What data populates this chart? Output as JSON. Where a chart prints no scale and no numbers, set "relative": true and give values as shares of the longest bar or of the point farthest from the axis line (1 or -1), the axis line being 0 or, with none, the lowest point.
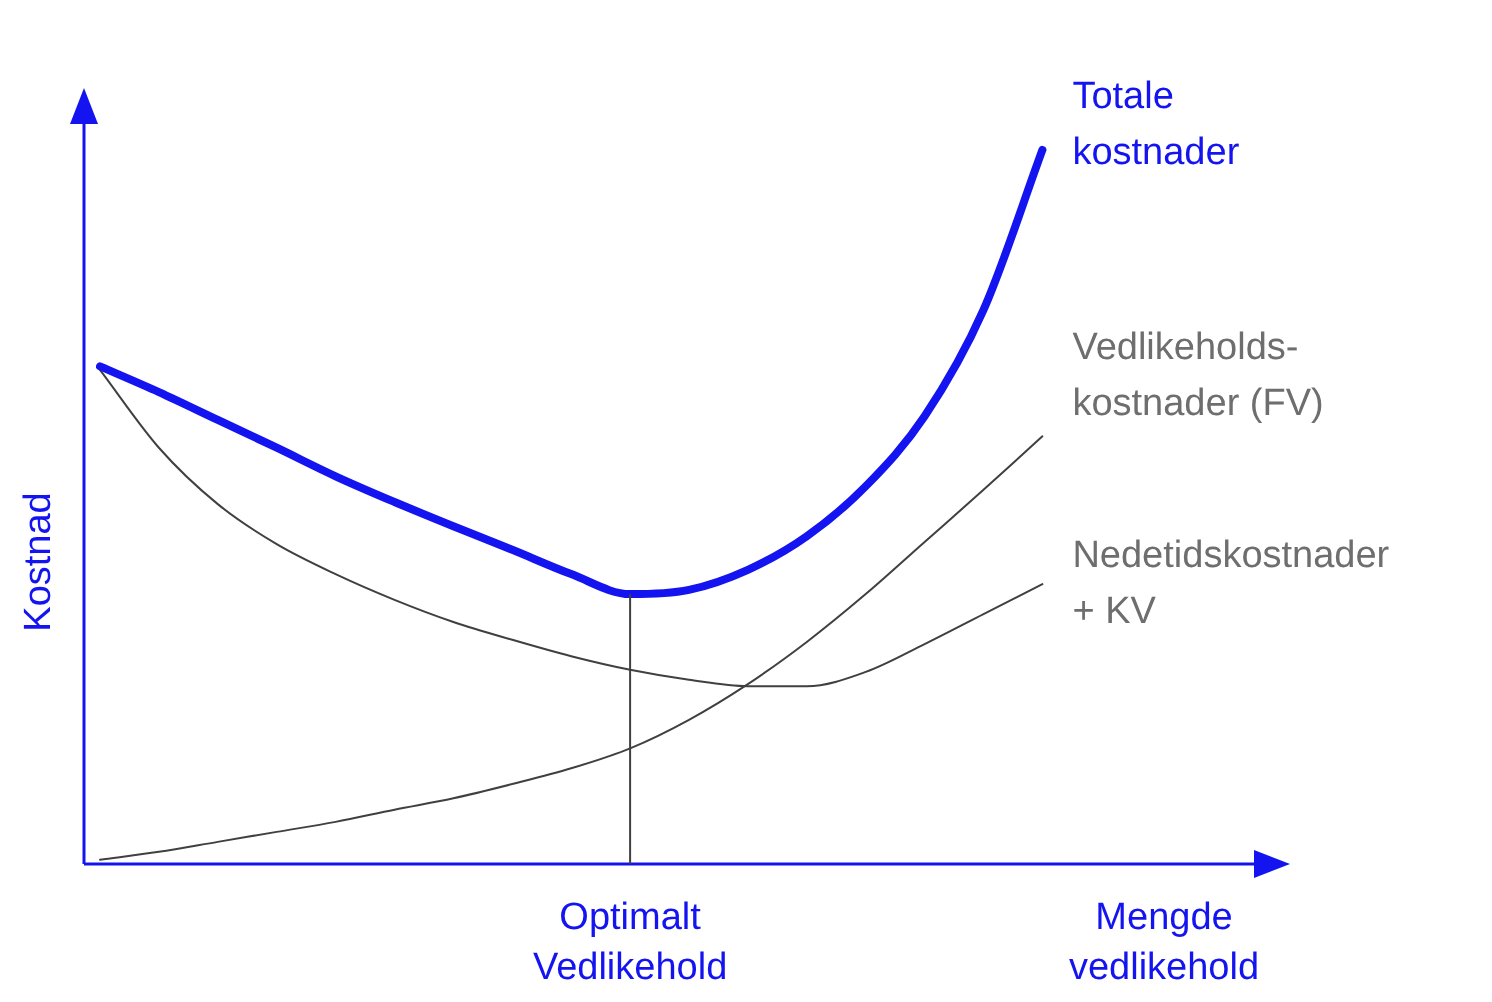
{
  "chart_data": {
    "type": "line",
    "relative": true,
    "ylabel": "Kostnad",
    "xlabel": "Mengde vedlikehold",
    "legend": false,
    "annotations": [
      "Optimalt Vedlikehold"
    ],
    "categories": [
      null,
      null,
      null,
      null,
      null,
      null,
      null,
      null,
      null,
      null,
      null,
      null,
      null,
      null,
      null,
      null,
      null,
      null,
      null,
      null,
      null
    ],
    "series": [
      {
        "name": "Totale kostnader",
        "color": "#1414f0",
        "values": [
          0.697,
          0.661,
          0.622,
          0.583,
          0.543,
          0.507,
          0.473,
          0.44,
          0.406,
          0.378,
          0.384,
          0.412,
          0.459,
          0.529,
          0.627,
          0.776,
          1,
          null,
          null,
          null,
          null
        ]
      },
      {
        "name": "Vedlikeholds- kostnader (FV)",
        "color": "#404040",
        "values": [
          0.006,
          0.017,
          0.031,
          0.045,
          0.059,
          0.076,
          0.092,
          0.112,
          0.134,
          0.162,
          0.202,
          0.252,
          0.311,
          0.378,
          0.451,
          0.524,
          0.599,
          null,
          null,
          null,
          null
        ]
      },
      {
        "name": "Nedetidskostnader + KV",
        "color": "#404040",
        "values": [
          0.692,
          0.583,
          0.504,
          0.448,
          0.406,
          0.37,
          0.339,
          0.314,
          0.291,
          0.272,
          0.258,
          0.249,
          0.249,
          0.269,
          0.308,
          0.35,
          0.392,
          null,
          null,
          null,
          null
        ]
      }
    ]
  }
}
